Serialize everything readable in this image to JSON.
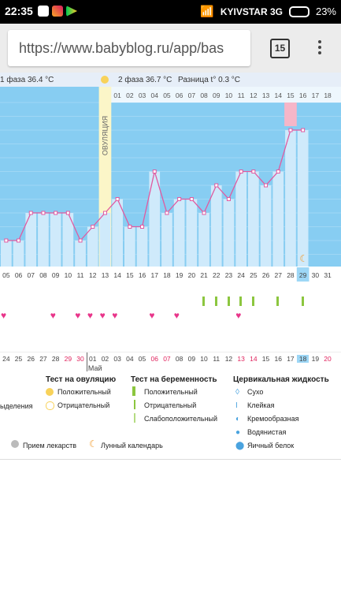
{
  "status_bar": {
    "time": "22:35",
    "carrier": "KYIVSTAR 3G",
    "battery": "23%"
  },
  "browser": {
    "url": "https://www.babyblog.ru/app/bas",
    "tabs_count": "15"
  },
  "info": {
    "phase1": "1 фаза 36.4 °C",
    "phase2": "2 фаза 36.7 °C",
    "diff": "Разница t° 0.3 °C"
  },
  "ovulation_label": "ОВУЛЯЦИЯ",
  "cycle_days_top": [
    "01",
    "02",
    "03",
    "04",
    "05",
    "06",
    "07",
    "08",
    "09",
    "10",
    "11",
    "12",
    "13",
    "14",
    "15",
    "16",
    "17",
    "18"
  ],
  "cycle_days_bottom": [
    "05",
    "06",
    "07",
    "08",
    "09",
    "10",
    "11",
    "12",
    "13",
    "14",
    "15",
    "16",
    "17",
    "18",
    "19",
    "20",
    "21",
    "22",
    "23",
    "24",
    "25",
    "26",
    "27",
    "28",
    "29",
    "30",
    "31"
  ],
  "chart_data": {
    "type": "line",
    "x": [
      5,
      6,
      7,
      8,
      9,
      10,
      11,
      12,
      13,
      14,
      15,
      16,
      17,
      18,
      19,
      20,
      21,
      22,
      23,
      24,
      25,
      26,
      27,
      28,
      29
    ],
    "values": [
      0,
      0,
      2,
      2,
      2,
      2,
      0,
      1,
      2,
      3,
      1,
      1,
      5,
      2,
      3,
      3,
      2,
      4,
      3,
      5,
      5,
      4,
      5,
      8,
      8
    ],
    "xlabel": "",
    "ylabel": "",
    "highlight_day": 29
  },
  "dates_row": [
    "24",
    "25",
    "26",
    "27",
    "28",
    "29",
    "30",
    "01",
    "02",
    "03",
    "04",
    "05",
    "06",
    "07",
    "08",
    "09",
    "10",
    "11",
    "12",
    "13",
    "14",
    "15",
    "16",
    "17",
    "18",
    "19",
    "20"
  ],
  "month_label": "Май",
  "legend": {
    "ovulation_title": "Тест на овуляцию",
    "ovulation_pos": "Положительный",
    "ovulation_neg": "Отрицательный",
    "preg_title": "Тест на беременность",
    "preg_pos": "Положительный",
    "preg_neg": "Отрицательный",
    "preg_weak": "Слабоположительный",
    "cm_title": "Цервикальная жидкость",
    "cm_dry": "Сухо",
    "cm_sticky": "Клейкая",
    "cm_creamy": "Кремообразная",
    "cm_watery": "Водянистая",
    "cm_egg": "Яичный белок",
    "discharge": "ыделения",
    "meds": "Прием лекарств",
    "moon": "Лунный календарь"
  },
  "colors": {
    "chart_bg": "#87cdf2",
    "bar": "#cfeafb",
    "line": "#e05aa0",
    "ovulation": "#fbf6c8",
    "highlight": "#f6b6c8",
    "ptest": "#8cc63f"
  }
}
